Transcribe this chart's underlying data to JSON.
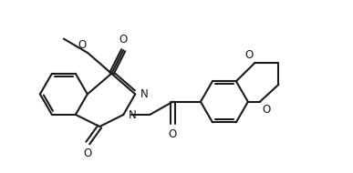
{
  "bg_color": "#ffffff",
  "line_color": "#1a1a1a",
  "line_width": 1.5,
  "font_size": 8.5,
  "figsize": [
    3.87,
    1.9
  ],
  "dpi": 100,
  "xlim": [
    0,
    9.0
  ],
  "ylim": [
    0,
    4.5
  ]
}
